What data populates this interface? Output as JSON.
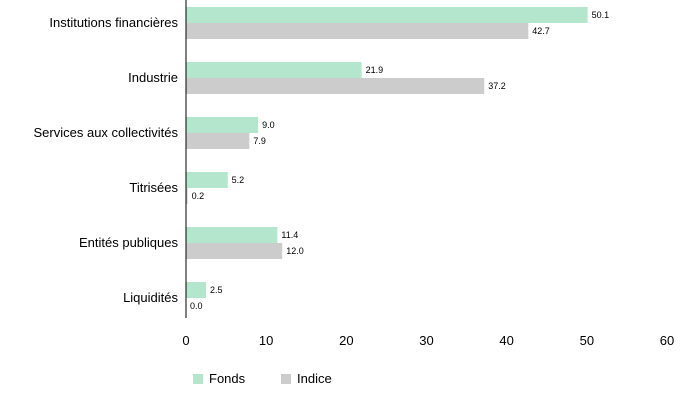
{
  "chart_data": {
    "type": "bar",
    "orientation": "horizontal",
    "categories": [
      "Institutions financières",
      "Industrie",
      "Services aux collectivités",
      "Titrisées",
      "Entités publiques",
      "Liquidités"
    ],
    "series": [
      {
        "name": "Fonds",
        "values": [
          50.1,
          21.9,
          9.0,
          5.2,
          11.4,
          2.5
        ],
        "labels": [
          "50.1",
          "21.9",
          "9.0",
          "5.2",
          "11.4",
          "2.5"
        ],
        "color": "#b3e6cc"
      },
      {
        "name": "Indice",
        "values": [
          42.7,
          37.2,
          7.9,
          0.2,
          12.0,
          0.0
        ],
        "labels": [
          "42.7",
          "37.2",
          "7.9",
          "0.2",
          "12.0",
          "0.0"
        ],
        "color": "#cccccc"
      }
    ],
    "xlim": [
      0,
      60
    ],
    "xticks": [
      0,
      10,
      20,
      30,
      40,
      50,
      60
    ],
    "xtick_labels": [
      "0",
      "10",
      "20",
      "30",
      "40",
      "50",
      "60"
    ],
    "grid": false,
    "legend_position": "bottom",
    "axis_color": "#000000"
  }
}
